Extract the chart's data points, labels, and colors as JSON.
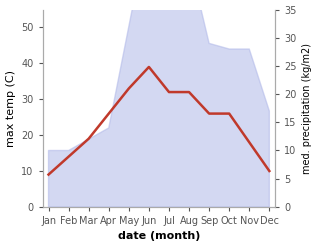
{
  "months": [
    "Jan",
    "Feb",
    "Mar",
    "Apr",
    "May",
    "Jun",
    "Jul",
    "Aug",
    "Sep",
    "Oct",
    "Nov",
    "Dec"
  ],
  "precipitation": [
    10,
    10,
    12,
    14,
    32,
    50,
    44,
    44,
    29,
    28,
    28,
    17
  ],
  "temperature": [
    9,
    14,
    19,
    26,
    33,
    39,
    32,
    32,
    26,
    26,
    18,
    10
  ],
  "temp_color": "#c0392b",
  "precip_color": "#b0b8e8",
  "precip_fill_alpha": 0.55,
  "left_ylim": [
    0,
    55
  ],
  "right_ylim": [
    0,
    35
  ],
  "left_yticks": [
    0,
    10,
    20,
    30,
    40,
    50
  ],
  "right_yticks": [
    0,
    5,
    10,
    15,
    20,
    25,
    30,
    35
  ],
  "xlabel": "date (month)",
  "ylabel_left": "max temp (C)",
  "ylabel_right": "med. precipitation (kg/m2)",
  "bg_color": "#ffffff",
  "line_width": 1.8
}
